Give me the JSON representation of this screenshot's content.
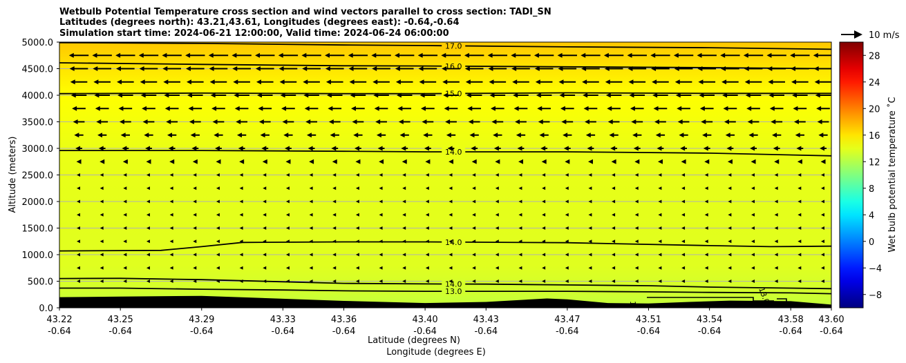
{
  "chart_data": {
    "type": "heatmap",
    "title_lines": [
      "Wetbulb Potential Temperature cross section and wind vectors parallel to cross section: TADI_SN",
      "Latitudes (degrees north): 43.21,43.61, Longitudes (degrees east): -0.64,-0.64",
      "Simulation start time: 2024-06-21 12:00:00, Valid time: 2024-06-24 06:00:00"
    ],
    "ylabel": "Altitude (meters)",
    "xlabel_1": "Latitude (degrees N)",
    "xlabel_2": "Longitude (degrees E)",
    "ylim": [
      0,
      5000
    ],
    "yticks": [
      "0.0",
      "500.0",
      "1000.0",
      "1500.0",
      "2000.0",
      "2500.0",
      "3000.0",
      "3500.0",
      "4000.0",
      "4500.0",
      "5000.0"
    ],
    "xticks_lat": [
      "43.22",
      "43.25",
      "43.29",
      "43.33",
      "43.36",
      "43.40",
      "43.43",
      "43.47",
      "43.51",
      "43.54",
      "43.58",
      "43.60"
    ],
    "xticks_lon": [
      "-0.64",
      "-0.64",
      "-0.64",
      "-0.64",
      "-0.64",
      "-0.64",
      "-0.64",
      "-0.64",
      "-0.64",
      "-0.64",
      "-0.64",
      "-0.64"
    ],
    "grid": "horizontal",
    "colorbar": {
      "label": "Wet bulb potential temperature ˚C",
      "range": [
        -10,
        30
      ],
      "ticks": [
        "−8",
        "−4",
        "0",
        "4",
        "8",
        "12",
        "16",
        "20",
        "24",
        "28"
      ]
    },
    "wind_key": {
      "label": "10 m/s"
    },
    "field_levels": [
      {
        "altitude": 0,
        "value": 12.6
      },
      {
        "altitude": 300,
        "value": 13.2
      },
      {
        "altitude": 800,
        "value": 13.8
      },
      {
        "altitude": 2000,
        "value": 14.0
      },
      {
        "altitude": 3000,
        "value": 14.2
      },
      {
        "altitude": 4000,
        "value": 15.0
      },
      {
        "altitude": 4500,
        "value": 16.0
      },
      {
        "altitude": 5000,
        "value": 17.2
      }
    ],
    "contours": [
      {
        "label": "17.0",
        "points": [
          [
            43.22,
            4990
          ],
          [
            43.29,
            4975
          ],
          [
            43.36,
            4945
          ],
          [
            43.4,
            4935
          ],
          [
            43.47,
            4910
          ],
          [
            43.54,
            4895
          ],
          [
            43.6,
            4865
          ]
        ]
      },
      {
        "label": "16.0",
        "points": [
          [
            43.22,
            4610
          ],
          [
            43.29,
            4580
          ],
          [
            43.36,
            4555
          ],
          [
            43.4,
            4550
          ],
          [
            43.47,
            4535
          ],
          [
            43.54,
            4520
          ],
          [
            43.6,
            4500
          ]
        ]
      },
      {
        "label": "15.0",
        "points": [
          [
            43.22,
            4030
          ],
          [
            43.29,
            4040
          ],
          [
            43.36,
            4030
          ],
          [
            43.4,
            4030
          ],
          [
            43.47,
            4045
          ],
          [
            43.54,
            4035
          ],
          [
            43.6,
            4035
          ]
        ]
      },
      {
        "label": "14.0",
        "points": [
          [
            43.22,
            2960
          ],
          [
            43.29,
            2960
          ],
          [
            43.36,
            2945
          ],
          [
            43.4,
            2935
          ],
          [
            43.47,
            2935
          ],
          [
            43.54,
            2910
          ],
          [
            43.6,
            2860
          ]
        ]
      },
      {
        "label": "14.0",
        "points": [
          [
            43.22,
            1070
          ],
          [
            43.27,
            1080
          ],
          [
            43.29,
            1150
          ],
          [
            43.31,
            1230
          ],
          [
            43.36,
            1240
          ],
          [
            43.4,
            1240
          ],
          [
            43.47,
            1225
          ],
          [
            43.54,
            1170
          ],
          [
            43.57,
            1150
          ],
          [
            43.6,
            1160
          ]
        ]
      },
      {
        "label": "14.0",
        "points": [
          [
            43.22,
            550
          ],
          [
            43.25,
            555
          ],
          [
            43.29,
            530
          ],
          [
            43.33,
            490
          ],
          [
            43.36,
            460
          ],
          [
            43.4,
            450
          ],
          [
            43.43,
            445
          ],
          [
            43.47,
            430
          ],
          [
            43.51,
            415
          ],
          [
            43.54,
            390
          ],
          [
            43.58,
            370
          ],
          [
            43.6,
            360
          ]
        ]
      },
      {
        "label": "13.0",
        "points": [
          [
            43.22,
            370
          ],
          [
            43.25,
            370
          ],
          [
            43.29,
            350
          ],
          [
            43.33,
            335
          ],
          [
            43.36,
            320
          ],
          [
            43.4,
            310
          ],
          [
            43.43,
            310
          ],
          [
            43.47,
            310
          ],
          [
            43.51,
            300
          ],
          [
            43.54,
            290
          ],
          [
            43.58,
            280
          ],
          [
            43.6,
            265
          ]
        ]
      }
    ],
    "terrain": [
      [
        43.22,
        200
      ],
      [
        43.25,
        210
      ],
      [
        43.29,
        225
      ],
      [
        43.33,
        170
      ],
      [
        43.36,
        130
      ],
      [
        43.4,
        90
      ],
      [
        43.43,
        110
      ],
      [
        43.46,
        175
      ],
      [
        43.47,
        160
      ],
      [
        43.49,
        90
      ],
      [
        43.51,
        80
      ],
      [
        43.53,
        110
      ],
      [
        43.55,
        135
      ],
      [
        43.58,
        125
      ],
      [
        43.6,
        60
      ]
    ],
    "wind_rows": [
      {
        "altitude": 4750,
        "u": -9.8
      },
      {
        "altitude": 4500,
        "u": -9.2
      },
      {
        "altitude": 4250,
        "u": -8.5
      },
      {
        "altitude": 4000,
        "u": -7.8
      },
      {
        "altitude": 3750,
        "u": -6.8
      },
      {
        "altitude": 3500,
        "u": -5.8
      },
      {
        "altitude": 3250,
        "u": -4.6
      },
      {
        "altitude": 3000,
        "u": -3.4
      },
      {
        "altitude": 2750,
        "u": -2.4
      },
      {
        "altitude": 2500,
        "u": -1.6
      },
      {
        "altitude": 2250,
        "u": -0.9
      },
      {
        "altitude": 2000,
        "u": -0.5
      },
      {
        "altitude": 1750,
        "u": -0.8
      },
      {
        "altitude": 1500,
        "u": -0.9
      },
      {
        "altitude": 1250,
        "u": -0.8
      },
      {
        "altitude": 1000,
        "u": -0.6
      },
      {
        "altitude": 750,
        "u": -0.5
      },
      {
        "altitude": 500,
        "u": -0.5
      }
    ]
  }
}
